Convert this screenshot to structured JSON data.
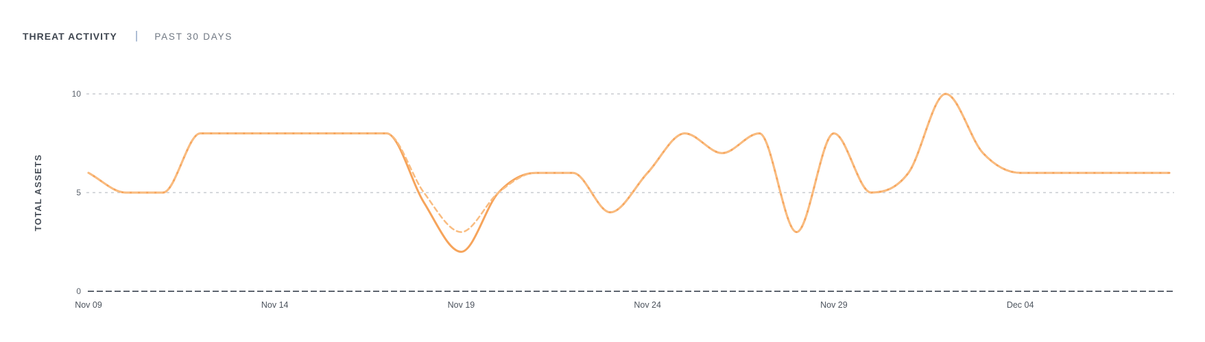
{
  "header": {
    "title": "THREAT ACTIVITY",
    "separator": "|",
    "range_label": "PAST 30 DAYS"
  },
  "chart_data": {
    "type": "line",
    "title": "THREAT ACTIVITY",
    "subtitle": "PAST 30 DAYS",
    "ylabel": "TOTAL ASSETS",
    "xlabel": "",
    "ylim": [
      0,
      10
    ],
    "y_ticks": [
      0,
      5,
      10
    ],
    "x_tick_labels": [
      "Nov 09",
      "Nov 14",
      "Nov 19",
      "Nov 24",
      "Nov 29",
      "Dec 04"
    ],
    "x_tick_day_indices": [
      0,
      5,
      10,
      15,
      20,
      25
    ],
    "x_days_span": 30,
    "grid": "horizontal dashed gridlines at y=5 and y=10; dashed dark baseline at y=0",
    "legend_position": "none",
    "series": [
      {
        "name": "solid-series",
        "line_style": "solid",
        "color": "#F6A45B",
        "values": [
          6,
          5,
          5,
          8,
          8,
          8,
          8,
          8,
          8,
          4.5,
          2,
          5,
          6,
          6,
          4,
          6,
          8,
          7,
          8,
          3,
          8,
          5,
          6,
          10,
          7,
          6,
          6,
          6,
          6,
          6
        ]
      },
      {
        "name": "dashed-series",
        "line_style": "dashed",
        "color": "#F9BC80",
        "values": [
          6,
          5,
          5,
          8,
          8,
          8,
          8,
          8,
          8,
          5,
          3,
          5,
          6,
          6,
          4,
          6,
          8,
          7,
          8,
          3,
          8,
          5,
          6,
          10,
          7,
          6,
          6,
          6,
          6,
          6
        ]
      }
    ]
  },
  "colors": {
    "background": "#FFFFFF",
    "line_solid": "#F6A45B",
    "line_dashed": "#F9BC80",
    "gridline": "#D6D8DC",
    "axis_baseline": "#5D646E",
    "y_tick_label": "#5A616B",
    "x_tick_label": "#4C535D",
    "title_text": "#3F4650",
    "separator": "#8CA3C3",
    "range_text": "#6F7782",
    "y_axis_title": "#474E57"
  }
}
